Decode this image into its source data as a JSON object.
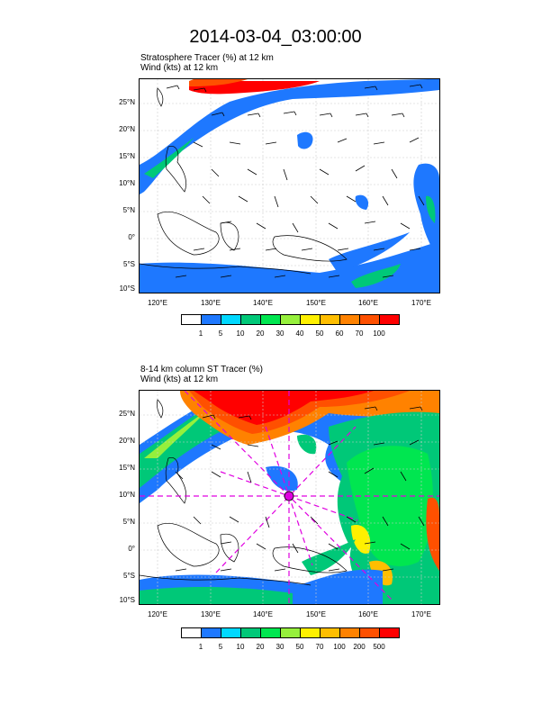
{
  "title": "2014-03-04_03:00:00",
  "panels": [
    {
      "label_line1": "Stratosphere Tracer   (%)     at    12 km",
      "label_line2": "Wind    (kts)     at   12 km",
      "lat_ticks": [
        "25°N",
        "20°N",
        "15°N",
        "10°N",
        "5°N",
        "0°",
        "5°S",
        "10°S"
      ],
      "lon_ticks": [
        "120°E",
        "130°E",
        "140°E",
        "150°E",
        "160°E",
        "170°E"
      ],
      "colorbar_labels": [
        "1",
        "5",
        "10",
        "20",
        "30",
        "40",
        "50",
        "60",
        "70",
        "100"
      ],
      "colorbar_colors": [
        "#ffffff",
        "#1e78ff",
        "#00d8ff",
        "#00c878",
        "#00e650",
        "#96f03c",
        "#fff000",
        "#ffbe00",
        "#ff8200",
        "#ff5000",
        "#ff0000"
      ]
    },
    {
      "label_line1": "8-14 km column ST Tracer    (%)",
      "label_line2": "Wind    (kts)     at   12 km",
      "lat_ticks": [
        "25°N",
        "20°N",
        "15°N",
        "10°N",
        "5°N",
        "0°",
        "5°S",
        "10°S"
      ],
      "lon_ticks": [
        "120°E",
        "130°E",
        "140°E",
        "150°E",
        "160°E",
        "170°E"
      ],
      "colorbar_labels": [
        "1",
        "5",
        "10",
        "20",
        "30",
        "50",
        "70",
        "100",
        "200",
        "500"
      ],
      "colorbar_colors": [
        "#ffffff",
        "#1e78ff",
        "#00d8ff",
        "#00c878",
        "#00e650",
        "#96f03c",
        "#fff000",
        "#ffbe00",
        "#ff8200",
        "#ff5000",
        "#ff0000"
      ]
    }
  ]
}
